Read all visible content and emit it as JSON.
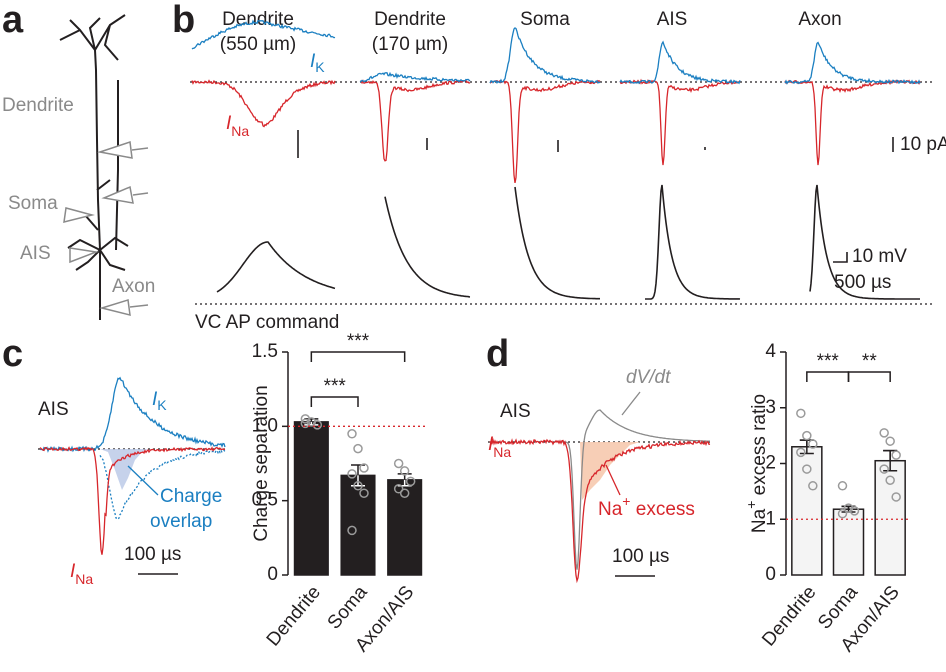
{
  "panels": {
    "a": {
      "label": "a",
      "parts": [
        "Dendrite",
        "Soma",
        "AIS",
        "Axon"
      ]
    },
    "b": {
      "label": "b",
      "columns": [
        [
          "Dendrite",
          "(550 µm)"
        ],
        [
          "Dendrite",
          "(170 µm)"
        ],
        [
          "Soma"
        ],
        [
          "AIS"
        ],
        [
          "Axon"
        ]
      ],
      "ik": {
        "symbol": "I",
        "sub": "K"
      },
      "ina": {
        "symbol": "I",
        "sub": "Na"
      },
      "current_scale": "10 pA",
      "voltage_scale": "10 mV",
      "time_scale": "500 µs",
      "command": "VC AP command"
    },
    "c": {
      "label": "c",
      "site": "AIS",
      "ik": {
        "symbol": "I",
        "sub": "K"
      },
      "ina": {
        "symbol": "I",
        "sub": "Na"
      },
      "overlap": [
        "Charge",
        "overlap"
      ],
      "time_scale": "100 µs"
    },
    "d": {
      "label": "d",
      "site": "AIS",
      "ina": {
        "symbol": "I",
        "sub": "Na"
      },
      "dvdt": "dV/dt",
      "excess": {
        "base": "Na",
        "sup": "+",
        "rest": " excess"
      },
      "time_scale": "100 µs"
    }
  },
  "chart_data": [
    {
      "type": "bar",
      "ylabel": {
        "base": "Charge separation"
      },
      "categories": [
        "Dendrite",
        "Soma",
        "Axon/AIS"
      ],
      "values": [
        1.03,
        0.67,
        0.64
      ],
      "errors": [
        0.02,
        0.07,
        0.04
      ],
      "points": [
        [
          1.05,
          1.03,
          1.01,
          1.02
        ],
        [
          0.95,
          0.85,
          0.72,
          0.68,
          0.6,
          0.55,
          0.3
        ],
        [
          0.75,
          0.7,
          0.63,
          0.58,
          0.55
        ]
      ],
      "color": "#231f20",
      "edgecolor": "#231f20",
      "point_color": "#9a9a9a",
      "ylim": [
        0,
        1.5
      ],
      "yticks": [
        0,
        0.5,
        {
          "value": 1,
          "label": "1.0"
        },
        1.5
      ],
      "refline": 1,
      "refline_color": "#d7262b",
      "significance": [
        "***",
        "***"
      ]
    },
    {
      "type": "bar",
      "ylabel": {
        "base": "Na",
        "sup": "+",
        "rest": " excess ratio"
      },
      "categories": [
        "Dendrite",
        "Soma",
        "Axon/AIS"
      ],
      "values": [
        2.3,
        1.18,
        2.05
      ],
      "errors": [
        0.12,
        0.05,
        0.18
      ],
      "points": [
        [
          2.9,
          2.5,
          2.35,
          2.2,
          1.9,
          1.6
        ],
        [
          1.6,
          1.2,
          1.15,
          1.1
        ],
        [
          2.55,
          2.4,
          2.15,
          1.9,
          1.7,
          1.4
        ]
      ],
      "color": "#f4f4f4",
      "edgecolor": "#231f20",
      "point_color": "#9a9a9a",
      "ylim": [
        0,
        4
      ],
      "yticks": [
        0,
        1,
        2,
        3,
        4
      ],
      "refline": 1,
      "refline_color": "#d7262b",
      "significance": [
        "***",
        "**"
      ]
    }
  ]
}
